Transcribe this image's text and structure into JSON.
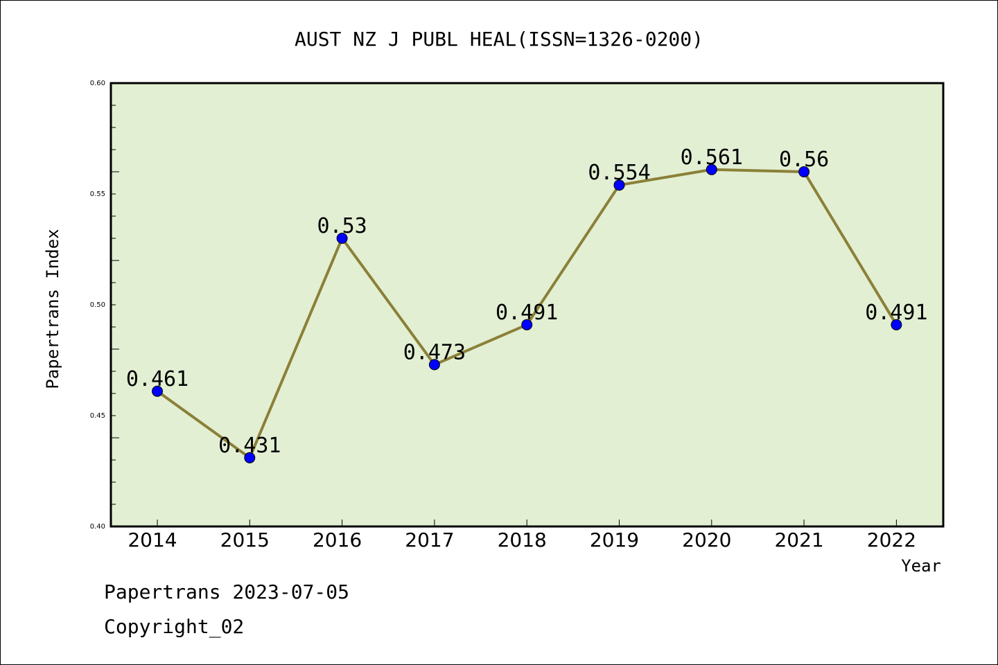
{
  "chart_data": {
    "type": "line",
    "title": "AUST NZ J PUBL HEAL(ISSN=1326-0200)",
    "xlabel": "Year",
    "ylabel": "Papertrans Index",
    "categories": [
      "2014",
      "2015",
      "2016",
      "2017",
      "2018",
      "2019",
      "2020",
      "2021",
      "2022"
    ],
    "values": [
      0.461,
      0.431,
      0.53,
      0.473,
      0.491,
      0.554,
      0.561,
      0.56,
      0.491
    ],
    "data_labels": [
      "0.461",
      "0.431",
      "0.53",
      "0.473",
      "0.491",
      "0.554",
      "0.561",
      "0.56",
      "0.491"
    ],
    "ylim": [
      0.4,
      0.6
    ],
    "yticks": [
      0.4,
      0.45,
      0.5,
      0.55,
      0.6
    ],
    "ytick_labels": [
      "0.40",
      "0.45",
      "0.50",
      "0.55",
      "0.60"
    ],
    "grid": false,
    "colors": {
      "plot_background": "#e2efd3",
      "line": "#8b8038",
      "marker": "#0000ff"
    }
  },
  "footer": {
    "line1": "Papertrans 2023-07-05",
    "line2": "Copyright_02"
  }
}
